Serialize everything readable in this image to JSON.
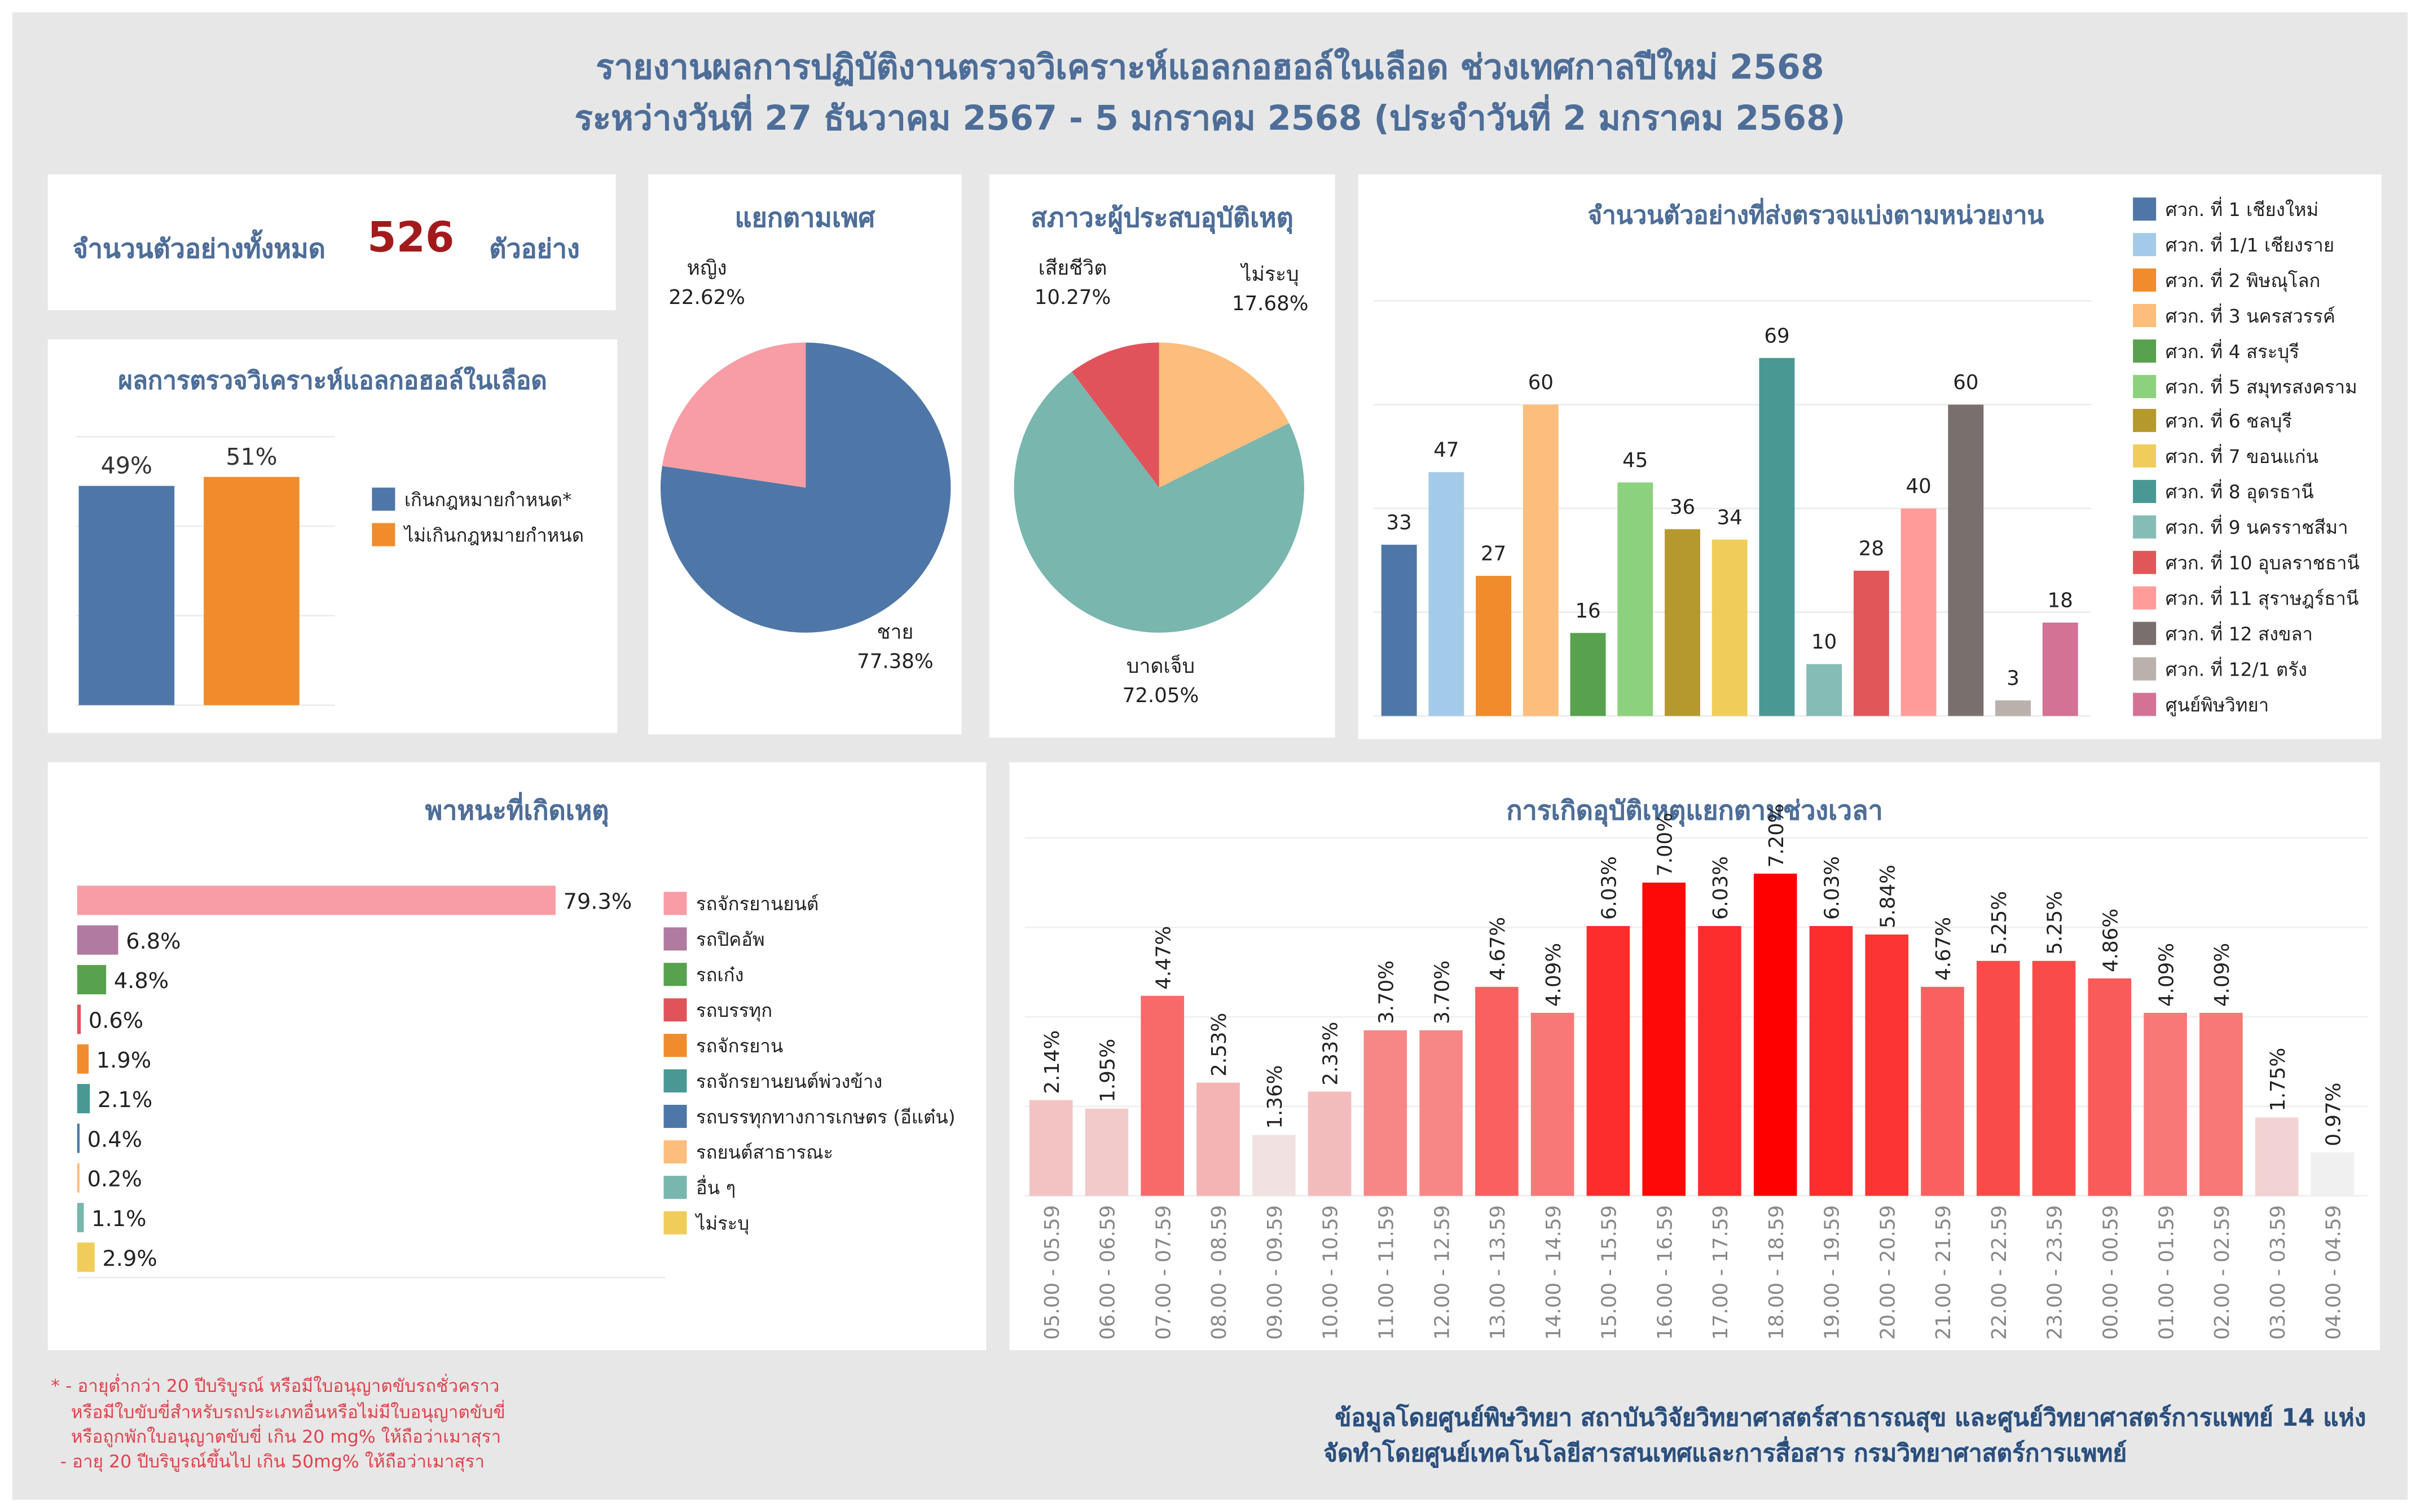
{
  "title": {
    "line1": "รายงานผลการปฏิบัติงานตรวจวิเคราะห์แอลกอฮอล์ในเลือด ช่วงเทศกาลปีใหม่ 2568",
    "line2": "ระหว่างวันที่ 27 ธันวาคม 2567 - 5 มกราคม 2568 (ประจำวันที่ 2 มกราคม 2568)"
  },
  "total": {
    "label": "จำนวนตัวอย่างทั้งหมด",
    "value": "526",
    "unit": "ตัวอย่าง",
    "value_color": "#a31a1d"
  },
  "colors": {
    "title": "#4e6e98",
    "background": "#e7e7e7",
    "note": "#e0414c"
  },
  "chart_data": [
    {
      "type": "bar",
      "title": "ผลการตรวจวิเคราะห์แอลกอฮอล์ในเลือด",
      "categories": [
        "เกินกฎหมายกำหนด*",
        "ไม่เกินกฎหมายกำหนด"
      ],
      "values": [
        49,
        51
      ],
      "data_labels": [
        "49%",
        "51%"
      ],
      "colors": [
        "#4e77a8",
        "#f08c2c"
      ],
      "ylim": [
        0,
        60
      ],
      "grid": true,
      "legend": "right"
    },
    {
      "type": "pie",
      "title": "แยกตามเพศ",
      "labels": [
        "ชาย",
        "หญิง"
      ],
      "values": [
        77.38,
        22.62
      ],
      "value_labels": [
        "77.38%",
        "22.62%"
      ],
      "colors": [
        "#4e77a8",
        "#f89da5"
      ]
    },
    {
      "type": "pie",
      "title": "สภาวะผู้ประสบอุบัติเหตุ",
      "labels": [
        "ไม่ระบุ",
        "บาดเจ็บ",
        "เสียชีวิต"
      ],
      "values": [
        17.68,
        72.05,
        10.27
      ],
      "value_labels": [
        "17.68%",
        "72.05%",
        "10.27%"
      ],
      "colors": [
        "#fcbd7d",
        "#79b6ae",
        "#e0535b"
      ]
    },
    {
      "type": "bar",
      "title": "จำนวนตัวอย่างที่ส่งตรวจแบ่งตามหน่วยงาน",
      "categories": [
        "ศวก. ที่ 1 เชียงใหม่",
        "ศวก. ที่ 1/1 เชียงราย",
        "ศวก. ที่ 2 พิษณุโลก",
        "ศวก. ที่ 3 นครสวรรค์",
        "ศวก. ที่ 4 สระบุรี",
        "ศวก. ที่ 5 สมุทรสงคราม",
        "ศวก. ที่ 6 ชลบุรี",
        "ศวก. ที่ 7 ขอนแก่น",
        "ศวก. ที่ 8 อุดรธานี",
        "ศวก. ที่ 9 นครราชสีมา",
        "ศวก. ที่ 10 อุบลราชธานี",
        "ศวก. ที่ 11 สุราษฎร์ธานี",
        "ศวก. ที่ 12 สงขลา",
        "ศวก. ที่ 12/1 ตรัง",
        "ศูนย์พิษวิทยา"
      ],
      "values": [
        33,
        47,
        27,
        60,
        16,
        45,
        36,
        34,
        69,
        10,
        28,
        40,
        60,
        3,
        18
      ],
      "colors": [
        "#4e77a8",
        "#a3cbe9",
        "#f08c2c",
        "#fcbd7d",
        "#58a14e",
        "#8cd17d",
        "#b6992d",
        "#f0cd5b",
        "#499894",
        "#86bcb6",
        "#e15759",
        "#ff9d9a",
        "#79706e",
        "#bab0ac",
        "#d37295"
      ],
      "ylim": [
        0,
        80
      ],
      "grid": true,
      "legend": "right"
    },
    {
      "type": "bar",
      "orientation": "horizontal",
      "title": "พาหนะที่เกิดเหตุ",
      "categories": [
        "รถจักรยานยนต์",
        "รถปิคอัพ",
        "รถเก๋ง",
        "รถบรรทุก",
        "รถจักรยาน",
        "รถจักรยานยนต์พ่วงข้าง",
        "รถบรรทุกทางการเกษตร (อีแต๋น)",
        "รถยนต์สาธารณะ",
        "อื่น ๆ",
        "ไม่ระบุ"
      ],
      "values": [
        79.3,
        6.8,
        4.8,
        0.6,
        1.9,
        2.1,
        0.4,
        0.2,
        1.1,
        2.9
      ],
      "value_labels": [
        "79.3%",
        "6.8%",
        "4.8%",
        "0.6%",
        "1.9%",
        "2.1%",
        "0.4%",
        "0.2%",
        "1.1%",
        "2.9%"
      ],
      "colors": [
        "#f89da5",
        "#b07aa1",
        "#58a14e",
        "#e0535b",
        "#f08c2c",
        "#499894",
        "#4e77a8",
        "#fcbd7d",
        "#79b6ae",
        "#f0cd5b"
      ],
      "xlim": [
        0,
        100
      ],
      "legend": "right"
    },
    {
      "type": "bar",
      "title": "การเกิดอุบัติเหตุแยกตามช่วงเวลา",
      "categories": [
        "05.00 - 05.59",
        "06.00 - 06.59",
        "07.00 - 07.59",
        "08.00 - 08.59",
        "09.00 - 09.59",
        "10.00 - 10.59",
        "11.00 - 11.59",
        "12.00 - 12.59",
        "13.00 - 13.59",
        "14.00 - 14.59",
        "15.00 - 15.59",
        "16.00 - 16.59",
        "17.00 - 17.59",
        "18.00 - 18.59",
        "19.00 - 19.59",
        "20.00 - 20.59",
        "21.00 - 21.59",
        "22.00 - 22.59",
        "23.00 - 23.59",
        "00.00 - 00.59",
        "01.00 - 01.59",
        "02.00 - 02.59",
        "03.00 - 03.59",
        "04.00 - 04.59"
      ],
      "values": [
        2.14,
        1.95,
        4.47,
        2.53,
        1.36,
        2.33,
        3.7,
        3.7,
        4.67,
        4.09,
        6.03,
        7.0,
        6.03,
        7.2,
        6.03,
        5.84,
        4.67,
        5.25,
        5.25,
        4.86,
        4.09,
        4.09,
        1.75,
        0.97
      ],
      "value_labels": [
        "2.14%",
        "1.95%",
        "4.47%",
        "2.53%",
        "1.36%",
        "2.33%",
        "3.70%",
        "3.70%",
        "4.67%",
        "4.09%",
        "6.03%",
        "7.00%",
        "6.03%",
        "7.20%",
        "6.03%",
        "5.84%",
        "4.67%",
        "5.25%",
        "5.25%",
        "4.86%",
        "4.09%",
        "4.09%",
        "1.75%",
        "0.97%"
      ],
      "color_scale": [
        "#f0f0f0",
        "#ff0000"
      ],
      "ylim": [
        0,
        8
      ],
      "grid": true
    }
  ],
  "notes": {
    "line1": "* - อายุต่ำกว่า 20 ปีบริบูรณ์ หรือมีใบอนุญาตขับรถชั่วคราว",
    "line2": "หรือมีใบขับขี่สำหรับรถประเภทอื่นหรือไม่มีใบอนุญาตขับขี่",
    "line3": "หรือถูกพักใบอนุญาตขับขี่ เกิน 20 mg% ให้ถือว่าเมาสุรา",
    "line4": "- อายุ 20 ปีบริบูรณ์ขึ้นไป เกิน 50mg% ให้ถือว่าเมาสุรา"
  },
  "credits": {
    "line1": "ข้อมูลโดยศูนย์พิษวิทยา สถาบันวิจัยวิทยาศาสตร์สาธารณสุข และศูนย์วิทยาศาสตร์การแพทย์ 14 แห่ง",
    "line2": "จัดทำโดยศูนย์เทคโนโลยีสารสนเทศและการสื่อสาร กรมวิทยาศาสตร์การแพทย์"
  }
}
